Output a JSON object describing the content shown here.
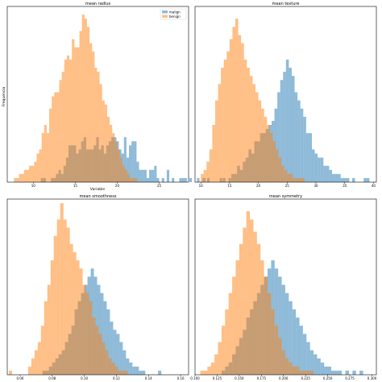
{
  "figure": {
    "ylabel": "Frequencia",
    "xlabel": "Variable"
  },
  "colors": {
    "malignant": "#1f77b4",
    "benign": "#ff7f0e",
    "bar_alpha": 0.5
  },
  "legend": {
    "position": "top-right",
    "labels": [
      "malign",
      "benign"
    ]
  },
  "chart_data": [
    {
      "type": "histogram",
      "title": "mean radius",
      "xlim": [
        6.9,
        28.5
      ],
      "ylim": [
        0,
        43
      ],
      "xticks": [
        10,
        15,
        20,
        25
      ],
      "tick_labels": [
        "10",
        "15",
        "20",
        "25"
      ],
      "bin_width": 0.3,
      "series": [
        {
          "name": "malign",
          "x_start": 10.9,
          "values": [
            1,
            1,
            0,
            0,
            1,
            1,
            2,
            3,
            2,
            4,
            6,
            9,
            9,
            9,
            7,
            8,
            10,
            11,
            8,
            8,
            8,
            9,
            11,
            8,
            9,
            7,
            9,
            10,
            11,
            11,
            10,
            8,
            7,
            11,
            6,
            9,
            10,
            10,
            5,
            3,
            3,
            3,
            1,
            3,
            3,
            4,
            1,
            0,
            1,
            0,
            3,
            0,
            1,
            0,
            0,
            1,
            1,
            1,
            0,
            1,
            0,
            0,
            1,
            0,
            0,
            0,
            1,
            0,
            0,
            0,
            0,
            1
          ]
        },
        {
          "name": "benign",
          "x_start": 7.7,
          "values": [
            1,
            1,
            2,
            2,
            3,
            3,
            4,
            4,
            5,
            7,
            8,
            12,
            14,
            12,
            18,
            21,
            22,
            22,
            25,
            27,
            30,
            31,
            30,
            35,
            33,
            33,
            37,
            41,
            40,
            38,
            34,
            32,
            28,
            27,
            24,
            20,
            19,
            16,
            14,
            12,
            10,
            8,
            6,
            4,
            3,
            2,
            1,
            1,
            1
          ]
        }
      ]
    },
    {
      "type": "histogram",
      "title": "mean texture",
      "xlim": [
        9,
        40.5
      ],
      "ylim": [
        0,
        43
      ],
      "xticks": [
        10,
        15,
        20,
        25,
        30,
        35,
        40
      ],
      "tick_labels": [
        "10",
        "15",
        "20",
        "25",
        "30",
        "35",
        "40"
      ],
      "bin_width": 0.5,
      "series": [
        {
          "name": "malign",
          "x_start": 10.3,
          "values": [
            1,
            0,
            0,
            0,
            0,
            0,
            0,
            1,
            0,
            1,
            2,
            2,
            4,
            3,
            5,
            6,
            8,
            7,
            10,
            10,
            12,
            12,
            13,
            14,
            15,
            18,
            22,
            25,
            27,
            30,
            28,
            26,
            22,
            20,
            18,
            16,
            12,
            12,
            8,
            7,
            6,
            6,
            4,
            4,
            3,
            2,
            2,
            2,
            1,
            1,
            1,
            0,
            1,
            0,
            0,
            0,
            1,
            1
          ]
        },
        {
          "name": "benign",
          "x_start": 10.0,
          "values": [
            2,
            3,
            5,
            8,
            14,
            20,
            24,
            28,
            30,
            32,
            35,
            38,
            40,
            36,
            34,
            30,
            28,
            26,
            24,
            22,
            20,
            18,
            16,
            14,
            12,
            10,
            8,
            6,
            4,
            3,
            2,
            2,
            1,
            1,
            1,
            1
          ]
        }
      ]
    },
    {
      "type": "histogram",
      "title": "mean smoothness",
      "xlim": [
        0.052,
        0.165
      ],
      "ylim": [
        0,
        43
      ],
      "xticks": [
        0.06,
        0.08,
        0.1,
        0.12,
        0.14,
        0.16
      ],
      "tick_labels": [
        "0.06",
        "0.08",
        "0.10",
        "0.12",
        "0.14",
        "0.16"
      ],
      "bin_width": 0.002,
      "series": [
        {
          "name": "malign",
          "x_start": 0.074,
          "values": [
            1,
            1,
            2,
            3,
            4,
            5,
            6,
            8,
            10,
            12,
            16,
            18,
            20,
            22,
            24,
            26,
            24,
            22,
            20,
            18,
            16,
            13,
            11,
            10,
            8,
            6,
            4,
            3,
            2,
            2,
            1,
            1,
            0,
            0,
            0,
            0,
            1
          ]
        },
        {
          "name": "benign",
          "x_start": 0.053,
          "values": [
            1,
            0,
            0,
            0,
            0,
            0,
            2,
            4,
            6,
            8,
            12,
            18,
            22,
            28,
            34,
            38,
            42,
            38,
            36,
            32,
            30,
            28,
            26,
            22,
            20,
            18,
            14,
            12,
            10,
            8,
            6,
            4,
            3,
            2,
            1,
            1,
            1
          ]
        }
      ]
    },
    {
      "type": "histogram",
      "title": "mean symmetry",
      "xlim": [
        0.1,
        0.305
      ],
      "ylim": [
        0,
        43
      ],
      "xticks": [
        0.1,
        0.125,
        0.15,
        0.175,
        0.2,
        0.225,
        0.25,
        0.275,
        0.3
      ],
      "tick_labels": [
        "0.100",
        "0.125",
        "0.150",
        "0.175",
        "0.200",
        "0.225",
        "0.250",
        "0.275",
        "0.300"
      ],
      "bin_width": 0.004,
      "series": [
        {
          "name": "malign",
          "x_start": 0.13,
          "values": [
            1,
            2,
            3,
            5,
            7,
            9,
            11,
            14,
            16,
            18,
            20,
            22,
            24,
            26,
            28,
            26,
            24,
            22,
            20,
            18,
            16,
            14,
            12,
            10,
            8,
            6,
            5,
            4,
            3,
            2,
            2,
            1,
            1,
            1,
            0,
            1,
            0,
            1,
            0,
            1
          ]
        },
        {
          "name": "benign",
          "x_start": 0.106,
          "values": [
            1,
            1,
            2,
            3,
            5,
            8,
            12,
            16,
            20,
            24,
            28,
            32,
            36,
            40,
            38,
            35,
            32,
            28,
            24,
            20,
            16,
            12,
            9,
            6,
            4,
            3,
            2,
            2,
            1,
            1,
            1,
            1
          ]
        }
      ]
    }
  ]
}
